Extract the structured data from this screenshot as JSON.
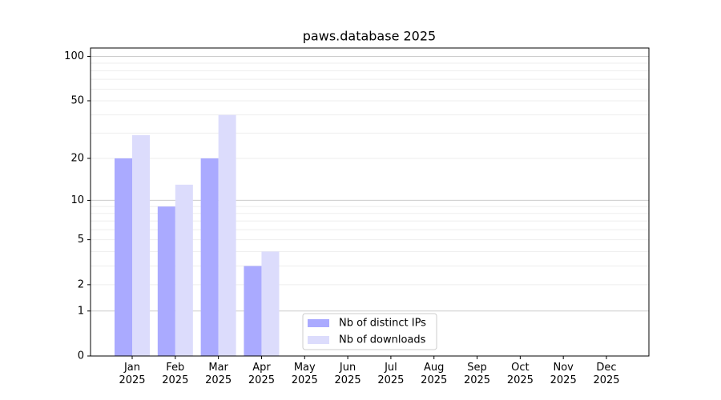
{
  "chart_data": {
    "type": "bar",
    "title": "paws.database 2025",
    "categories": [
      "Jan\n2025",
      "Feb\n2025",
      "Mar\n2025",
      "Apr\n2025",
      "May\n2025",
      "Jun\n2025",
      "Jul\n2025",
      "Aug\n2025",
      "Sep\n2025",
      "Oct\n2025",
      "Nov\n2025",
      "Dec\n2025"
    ],
    "series": [
      {
        "name": "Nb of distinct IPs",
        "color": "#aaaaff",
        "values": [
          20,
          9,
          20,
          3,
          0,
          0,
          0,
          0,
          0,
          0,
          0,
          0
        ]
      },
      {
        "name": "Nb of downloads",
        "color": "#dcdcfc",
        "values": [
          29,
          13,
          40,
          4,
          0,
          0,
          0,
          0,
          0,
          0,
          0,
          0
        ]
      }
    ],
    "yscale": "log1p",
    "ylim": [
      0,
      114
    ],
    "yticks": [
      0,
      1,
      2,
      5,
      10,
      20,
      50,
      100
    ],
    "major_grid": [
      1,
      10,
      100
    ],
    "minor_grid": [
      2,
      3,
      4,
      5,
      6,
      7,
      8,
      9,
      20,
      30,
      40,
      50,
      60,
      70,
      80,
      90
    ],
    "legend": "lower center"
  }
}
